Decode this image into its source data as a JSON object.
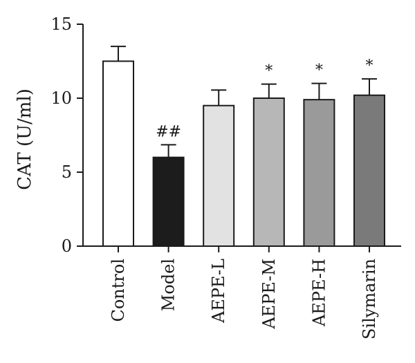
{
  "chart_data": {
    "type": "bar",
    "categories": [
      "Control",
      "Model",
      "AEPE-L",
      "AEPE-M",
      "AEPE-H",
      "Silymarin"
    ],
    "values": [
      12.5,
      6.0,
      9.5,
      10.0,
      9.9,
      10.2
    ],
    "errors": [
      1.0,
      0.85,
      1.05,
      0.95,
      1.1,
      1.1
    ],
    "annotations": [
      "",
      "##",
      "",
      "*",
      "*",
      "*"
    ],
    "bar_colors": [
      "#ffffff",
      "#1c1c1c",
      "#e2e2e2",
      "#b7b7b7",
      "#9a9a9a",
      "#7a7a7a"
    ],
    "ylabel": "CAT (U/ml)",
    "xlabel": "",
    "ylim": [
      0,
      15
    ],
    "yticks": [
      0,
      5,
      10,
      15
    ],
    "grid": false,
    "legend": false
  }
}
